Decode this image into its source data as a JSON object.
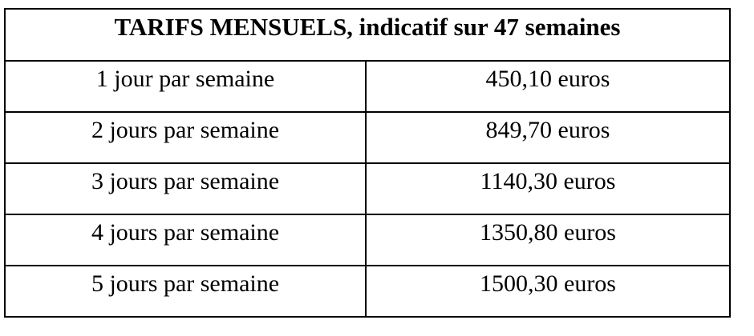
{
  "table": {
    "title": "TARIFS MENSUELS, indicatif sur 47 semaines",
    "rows": [
      {
        "duration": "1 jour par semaine",
        "price": "450,10 euros"
      },
      {
        "duration": "2 jours par semaine",
        "price": "849,70 euros"
      },
      {
        "duration": "3 jours par semaine",
        "price": "1140,30 euros"
      },
      {
        "duration": "4 jours par semaine",
        "price": "1350,80 euros"
      },
      {
        "duration": "5 jours par semaine",
        "price": "1500,30 euros"
      }
    ],
    "colors": {
      "border": "#000000",
      "text": "#000000",
      "background": "#ffffff"
    }
  }
}
